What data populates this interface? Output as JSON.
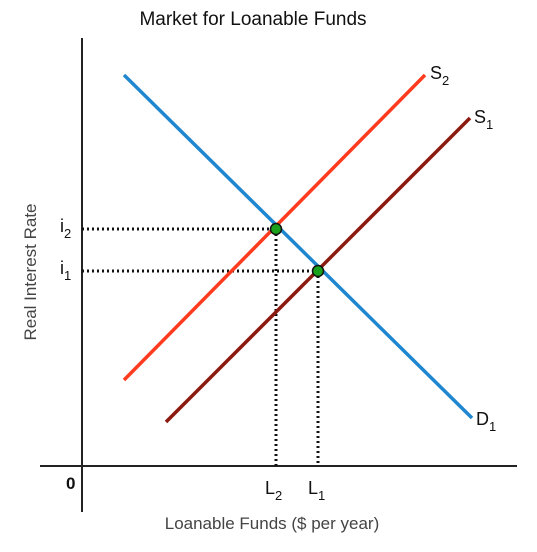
{
  "diagram": {
    "title": "Market for Loanable Funds",
    "x_axis_label": "Loanable Funds ($ per year)",
    "y_axis_label": "Real Interest Rate",
    "origin_label": "0",
    "curves": [
      {
        "id": "S2",
        "letter": "S",
        "subscript": "2",
        "color": "#ff3b1f"
      },
      {
        "id": "S1",
        "letter": "S",
        "subscript": "1",
        "color": "#8b1a10"
      },
      {
        "id": "D1",
        "letter": "D",
        "subscript": "1",
        "color": "#1f86d0"
      }
    ],
    "equilibria": [
      {
        "rate_letter": "i",
        "rate_subscript": "2",
        "quantity_letter": "L",
        "quantity_subscript": "2"
      },
      {
        "rate_letter": "i",
        "rate_subscript": "1",
        "quantity_letter": "L",
        "quantity_subscript": "1"
      }
    ],
    "point_color": "#1aa01a",
    "axis_color": "#222222",
    "guide_color": "#111111"
  }
}
